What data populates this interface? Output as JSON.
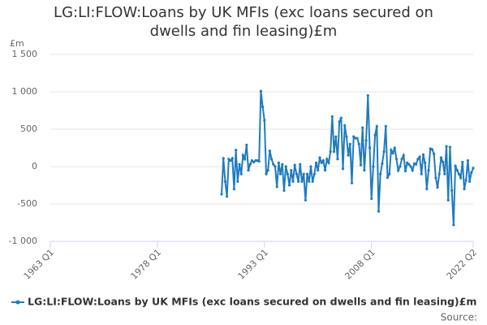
{
  "chart_data": {
    "type": "line",
    "title": "LG:LI:FLOW:Loans by UK MFIs (exc loans secured on dwells and fin leasing)£m",
    "y_unit": "£m",
    "source": "Source:",
    "series_name": "LG:LI:FLOW:Loans by UK MFIs (exc loans secured on dwells and fin leasing)£m",
    "color": "#1f7bbf",
    "grid": true,
    "xlim": [
      "1963 Q1",
      "2022 Q2"
    ],
    "xticks": [
      "1963 Q1",
      "1978 Q1",
      "1993 Q1",
      "2008 Q1",
      "2022 Q2"
    ],
    "ylim": [
      -1000,
      1500
    ],
    "yticks": [
      {
        "value": -1000,
        "label": "-1 000"
      },
      -500,
      0,
      500,
      {
        "value": 1000,
        "label": "1 000"
      },
      {
        "value": 1500,
        "label": "1 500"
      }
    ],
    "x": [
      "1987 Q1",
      "1987 Q2",
      "1987 Q3",
      "1987 Q4",
      "1988 Q1",
      "1988 Q2",
      "1988 Q3",
      "1988 Q4",
      "1989 Q1",
      "1989 Q2",
      "1989 Q3",
      "1989 Q4",
      "1990 Q1",
      "1990 Q2",
      "1990 Q3",
      "1990 Q4",
      "1991 Q1",
      "1991 Q2",
      "1991 Q3",
      "1991 Q4",
      "1992 Q1",
      "1992 Q2",
      "1992 Q3",
      "1992 Q4",
      "1993 Q1",
      "1993 Q2",
      "1993 Q3",
      "1993 Q4",
      "1994 Q1",
      "1994 Q2",
      "1994 Q3",
      "1994 Q4",
      "1995 Q1",
      "1995 Q2",
      "1995 Q3",
      "1995 Q4",
      "1996 Q1",
      "1996 Q2",
      "1996 Q3",
      "1996 Q4",
      "1997 Q1",
      "1997 Q2",
      "1997 Q3",
      "1997 Q4",
      "1998 Q1",
      "1998 Q2",
      "1998 Q3",
      "1998 Q4",
      "1999 Q1",
      "1999 Q2",
      "1999 Q3",
      "1999 Q4",
      "2000 Q1",
      "2000 Q2",
      "2000 Q3",
      "2000 Q4",
      "2001 Q1",
      "2001 Q2",
      "2001 Q3",
      "2001 Q4",
      "2002 Q1",
      "2002 Q2",
      "2002 Q3",
      "2002 Q4",
      "2003 Q1",
      "2003 Q2",
      "2003 Q3",
      "2003 Q4",
      "2004 Q1",
      "2004 Q2",
      "2004 Q3",
      "2004 Q4",
      "2005 Q1",
      "2005 Q2",
      "2005 Q3",
      "2005 Q4",
      "2006 Q1",
      "2006 Q2",
      "2006 Q3",
      "2006 Q4",
      "2007 Q1",
      "2007 Q2",
      "2007 Q3",
      "2007 Q4",
      "2008 Q1",
      "2008 Q2",
      "2008 Q3",
      "2008 Q4",
      "2009 Q1",
      "2009 Q2",
      "2009 Q3",
      "2009 Q4",
      "2010 Q1",
      "2010 Q2",
      "2010 Q3",
      "2010 Q4",
      "2011 Q1",
      "2011 Q2",
      "2011 Q3",
      "2011 Q4",
      "2012 Q1",
      "2012 Q2",
      "2012 Q3",
      "2012 Q4",
      "2013 Q1",
      "2013 Q2",
      "2013 Q3",
      "2013 Q4",
      "2014 Q1",
      "2014 Q2",
      "2014 Q3",
      "2014 Q4",
      "2015 Q1",
      "2015 Q2",
      "2015 Q3",
      "2015 Q4",
      "2016 Q1",
      "2016 Q2",
      "2016 Q3",
      "2016 Q4",
      "2017 Q1",
      "2017 Q2",
      "2017 Q3",
      "2017 Q4",
      "2018 Q1",
      "2018 Q2",
      "2018 Q3",
      "2018 Q4",
      "2019 Q1",
      "2019 Q2",
      "2019 Q3",
      "2019 Q4",
      "2020 Q1",
      "2020 Q2",
      "2020 Q3",
      "2020 Q4",
      "2021 Q1",
      "2021 Q2",
      "2021 Q3",
      "2021 Q4",
      "2022 Q1",
      "2022 Q2"
    ],
    "values": [
      -370,
      110,
      -200,
      -400,
      100,
      80,
      110,
      -300,
      220,
      -200,
      30,
      -100,
      150,
      100,
      290,
      -50,
      30,
      80,
      60,
      80,
      80,
      70,
      1010,
      800,
      620,
      -100,
      -50,
      210,
      100,
      30,
      0,
      -270,
      50,
      -100,
      30,
      -320,
      0,
      -100,
      -250,
      -50,
      -200,
      20,
      -100,
      -200,
      30,
      -200,
      -100,
      -450,
      -100,
      -200,
      0,
      -200,
      -100,
      50,
      -50,
      120,
      50,
      80,
      -50,
      100,
      50,
      200,
      670,
      200,
      400,
      100,
      600,
      650,
      -30,
      550,
      400,
      150,
      300,
      -220,
      400,
      380,
      380,
      300,
      20,
      520,
      -50,
      350,
      950,
      250,
      -430,
      0,
      420,
      540,
      -600,
      -100,
      40,
      200,
      540,
      -150,
      -100,
      220,
      180,
      250,
      100,
      -50,
      0,
      100,
      150,
      -60,
      50,
      30,
      0,
      -50,
      40,
      30,
      100,
      130,
      -100,
      160,
      50,
      -300,
      -50,
      240,
      230,
      170,
      -150,
      -280,
      -100,
      120,
      60,
      -100,
      270,
      -450,
      260,
      -320,
      -780,
      10,
      -50,
      -100,
      -150,
      60,
      -300,
      -180,
      80,
      -200,
      -80,
      -20
    ]
  }
}
